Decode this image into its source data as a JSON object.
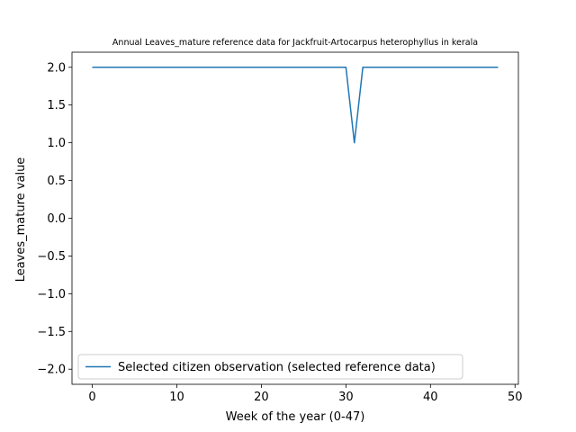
{
  "chart_data": {
    "type": "line",
    "title": "Annual Leaves_mature reference data for Jackfruit-Artocarpus heterophyllus in kerala",
    "xlabel": "Week of the year (0-47)",
    "ylabel": "Leaves_mature value",
    "xlim": [
      -2.4,
      50.4
    ],
    "ylim": [
      -2.2,
      2.2
    ],
    "xticks": [
      0,
      10,
      20,
      30,
      40,
      50
    ],
    "yticks": [
      -2.0,
      -1.5,
      -1.0,
      -0.5,
      0.0,
      0.5,
      1.0,
      1.5,
      2.0
    ],
    "ytick_labels": [
      "−2.0",
      "−1.5",
      "−1.0",
      "−0.5",
      "0.0",
      "0.5",
      "1.0",
      "1.5",
      "2.0"
    ],
    "grid": false,
    "legend_position": "lower-left",
    "series": [
      {
        "name": "Selected citizen observation (selected reference data)",
        "color": "#1f77b4",
        "x": [
          0,
          1,
          2,
          3,
          4,
          5,
          6,
          7,
          8,
          9,
          10,
          11,
          12,
          13,
          14,
          15,
          16,
          17,
          18,
          19,
          20,
          21,
          22,
          23,
          24,
          25,
          26,
          27,
          28,
          29,
          30,
          31,
          32,
          33,
          34,
          35,
          36,
          37,
          38,
          39,
          40,
          41,
          42,
          43,
          44,
          45,
          46,
          47,
          48
        ],
        "values": [
          2,
          2,
          2,
          2,
          2,
          2,
          2,
          2,
          2,
          2,
          2,
          2,
          2,
          2,
          2,
          2,
          2,
          2,
          2,
          2,
          2,
          2,
          2,
          2,
          2,
          2,
          2,
          2,
          2,
          2,
          2,
          1,
          2,
          2,
          2,
          2,
          2,
          2,
          2,
          2,
          2,
          2,
          2,
          2,
          2,
          2,
          2,
          2,
          2
        ]
      }
    ]
  }
}
